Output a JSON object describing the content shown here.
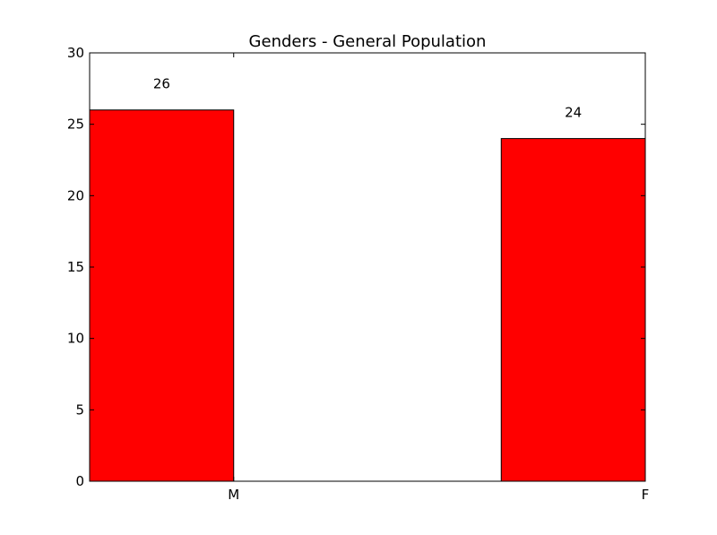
{
  "chart_data": {
    "type": "bar",
    "title": "Genders - General Population",
    "categories": [
      "M",
      "F"
    ],
    "values": [
      26,
      24
    ],
    "data_labels": [
      "26",
      "24"
    ],
    "xlabel": "",
    "ylabel": "",
    "ylim": [
      0,
      30
    ],
    "yticks": [
      0,
      5,
      10,
      15,
      20,
      25,
      30
    ],
    "bar_color": "#ff0000",
    "edge_color": "#000000",
    "grid": false,
    "legend": "none"
  }
}
